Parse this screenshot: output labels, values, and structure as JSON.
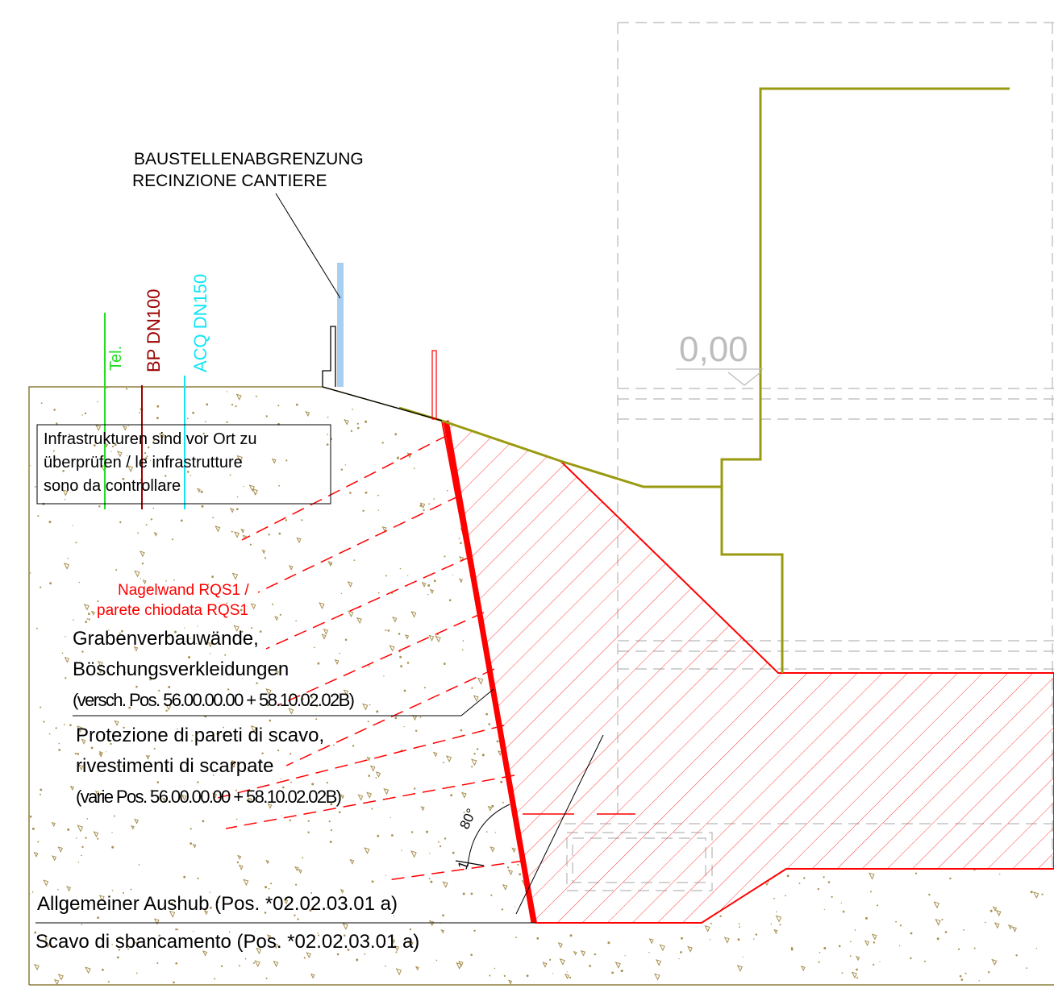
{
  "labels": {
    "fence_de": "BAUSTELLENABGRENZUNG",
    "fence_it": "RECINZIONE CANTIERE",
    "tel": "Tel.",
    "bp": "BP DN100",
    "acq": "ACQ DN150",
    "level": "0,00",
    "infra_line1": "Infrastrukturen sind vor Ort zu",
    "infra_line2": "überprüfen / le infrastrutture",
    "infra_line3": "sono da controllare",
    "nail_line1": "Nagelwand RQS1 /",
    "nail_line2": "parete chiodata RQS1",
    "shoring_de_1": "Grabenverbauwände,",
    "shoring_de_2": "Böschungsverkleidungen",
    "shoring_de_3": "(versch. Pos. 56.00.00.00 + 58.10.02.02B)",
    "shoring_it_1": "Protezione di pareti di scavo,",
    "shoring_it_2": "rivestimenti di scarpate",
    "shoring_it_3": "(varie Pos. 56.00.00.00 + 58.10.02.02B)",
    "angle": "80°",
    "slope": "1",
    "excav_de": "Allgemeiner Aushub (Pos.  *02.02.03.01 a)",
    "excav_it": "Scavo di sbancamento (Pos.  *02.02.03.01 a)"
  },
  "colors": {
    "soil_outline": "#8b7d3a",
    "soil_dot": "#a89050",
    "nail_wall": "#ff0000",
    "hatch": "#ff4040",
    "existing_line": "#9a9a10",
    "fence_post": "#a8cff0",
    "tel": "#22dd22",
    "bp": "#9b0000",
    "acq": "#11e5f5",
    "dashed_grey": "#b8b8b8",
    "level_text": "#bdbdbd",
    "text": "#000000"
  }
}
